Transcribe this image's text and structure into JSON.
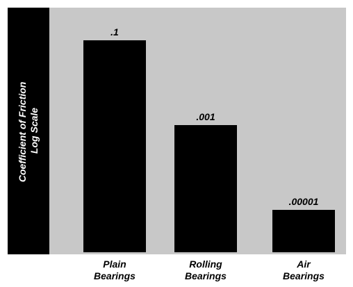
{
  "chart_data": {
    "type": "bar",
    "categories": [
      [
        "Plain",
        "Bearings"
      ],
      [
        "Rolling",
        "Bearings"
      ],
      [
        "Air",
        "Bearings"
      ]
    ],
    "values": [
      0.1,
      0.001,
      1e-05
    ],
    "data_labels": [
      ".1",
      ".001",
      ".00001"
    ],
    "ylabel": [
      "Coefficient of Friction",
      "Log Scale"
    ],
    "yscale": "log",
    "ylim": [
      1e-06,
      0.1
    ],
    "grid": false,
    "legend": "none",
    "colors": {
      "bar": "#000000",
      "plot_background": "#c8c8c8",
      "axis_panel": "#000000",
      "axis_label_text": "#ffffff"
    }
  }
}
